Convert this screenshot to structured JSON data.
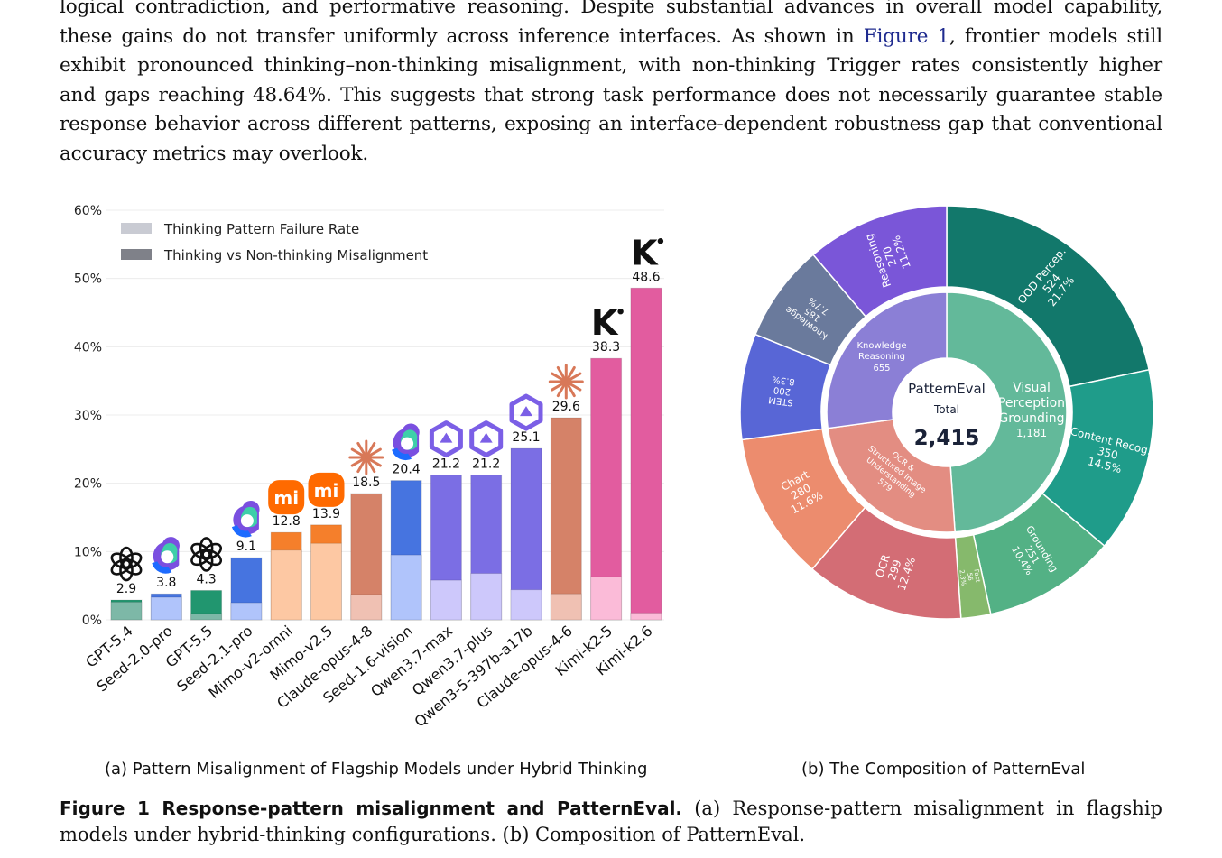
{
  "paragraph": {
    "line1": "logical contradiction, and performative reasoning. Despite substantial advances in overall model capability,",
    "line2_a": "these gains do not transfer uniformly across inference interfaces. As shown in ",
    "line2_link": "Figure 1",
    "line2_b": ", frontier models still",
    "line3": "exhibit pronounced thinking–non-thinking misalignment, with non-thinking Trigger rates consistently higher",
    "line4": "and gaps reaching 48.64%. This suggests that strong task performance does not necessarily guarantee stable",
    "line5": "response behavior across different patterns, exposing an interface-dependent robustness gap that conventional",
    "line6": "accuracy metrics may overlook."
  },
  "chart_data": [
    {
      "type": "bar",
      "title": "",
      "xlabel": "",
      "ylabel": "",
      "ylim": [
        0,
        60
      ],
      "yticks": [
        "0%",
        "10%",
        "20%",
        "30%",
        "40%",
        "50%",
        "60%"
      ],
      "grid": true,
      "legend_position": "top-left",
      "categories": [
        "GPT-5.4",
        "Seed-2.0-pro",
        "GPT-5.5",
        "Seed-2.1-pro",
        "Mimo-v2-omni",
        "Mimo-v2.5",
        "Claude-opus-4-8",
        "Seed-1.6-vision",
        "Qwen3.7-max",
        "Qwen3.7-plus",
        "Qwen3-5-397b-a17b",
        "Claude-opus-4-6",
        "Kimi-k2-5",
        "Kimi-k2.6"
      ],
      "series": [
        {
          "name": "Thinking Pattern Failure Rate",
          "values": [
            2.6,
            3.3,
            0.9,
            2.5,
            10.2,
            11.2,
            3.7,
            9.5,
            5.8,
            6.8,
            4.4,
            3.8,
            6.3,
            1.0
          ]
        },
        {
          "name": "Thinking vs Non-thinking Misalignment",
          "values": [
            2.9,
            3.8,
            4.3,
            9.1,
            12.8,
            13.9,
            18.5,
            20.4,
            21.2,
            21.2,
            25.1,
            29.6,
            38.3,
            48.6
          ]
        }
      ],
      "data_labels": [
        "2.9",
        "3.8",
        "4.3",
        "9.1",
        "12.8",
        "13.9",
        "18.5",
        "20.4",
        "21.2",
        "21.2",
        "25.1",
        "29.6",
        "38.3",
        "48.6"
      ],
      "vendor_icons": [
        "openai-icon",
        "seed-icon",
        "openai-icon",
        "seed-icon",
        "xiaomi-icon",
        "xiaomi-icon",
        "claude-icon",
        "seed-icon",
        "qwen-icon",
        "qwen-icon",
        "qwen-icon",
        "claude-icon",
        "kimi-icon",
        "kimi-icon"
      ],
      "colors": {
        "top": [
          "#21966f",
          "#4674e0",
          "#21966f",
          "#4674e0",
          "#f57f2b",
          "#f57f2b",
          "#d58268",
          "#4674e0",
          "#7b6ee4",
          "#7b6ee4",
          "#7b6ee4",
          "#d58268",
          "#e25c9f",
          "#e25c9f"
        ],
        "bottom": [
          "#7db8a7",
          "#b0c4fb",
          "#7db8a7",
          "#b0c4fb",
          "#fdc8a3",
          "#fdc8a3",
          "#f0c1b3",
          "#b0c4fb",
          "#cdc8fb",
          "#cdc8fb",
          "#cdc8fb",
          "#f0c1b3",
          "#fbbbd8",
          "#fbbbd8"
        ],
        "legend_light": "#c9cbd3",
        "legend_dark": "#7f8189"
      }
    },
    {
      "type": "sunburst",
      "center": {
        "name": "PatternEval",
        "label": "Total",
        "value": "2,415"
      },
      "inner": [
        {
          "name": "Visual Perception Grounding",
          "value": "1,181",
          "color": "#63b99a"
        },
        {
          "name": "OCR & Structured Image Understanding",
          "value": "579",
          "color": "#e38d82"
        },
        {
          "name": "Knowledge Reasoning",
          "value": "655",
          "color": "#8b7fd6"
        }
      ],
      "outer": [
        {
          "name": "OOD Percep.",
          "count": "524",
          "pct": "21.7%",
          "color": "#12786b"
        },
        {
          "name": "Content Recog.",
          "count": "350",
          "pct": "14.5%",
          "color": "#1f9c8a"
        },
        {
          "name": "Grounding",
          "count": "251",
          "pct": "10.4%",
          "color": "#53b185"
        },
        {
          "name": "Fact",
          "count": "56",
          "pct": "2.3%",
          "color": "#86b96c"
        },
        {
          "name": "OCR",
          "count": "299",
          "pct": "12.4%",
          "color": "#d36d75"
        },
        {
          "name": "Chart",
          "count": "280",
          "pct": "11.6%",
          "color": "#ec8c6e"
        },
        {
          "name": "STEM",
          "count": "200",
          "pct": "8.3%",
          "color": "#5866d6"
        },
        {
          "name": "Knowledge",
          "count": "185",
          "pct": "7.7%",
          "color": "#6a7a9c"
        },
        {
          "name": "Reasoning",
          "count": "270",
          "pct": "11.2%",
          "color": "#7a56d8"
        }
      ]
    }
  ],
  "subcaptions": {
    "a": "(a) Pattern Misalignment of Flagship Models under Hybrid Thinking",
    "b": "(b) The Composition of PatternEval"
  },
  "figure_caption": {
    "label": "Figure 1  Response-pattern misalignment and PatternEval.",
    "text": " (a) Response-pattern misalignment in flagship models under hybrid-thinking configurations. (b) Composition of PatternEval."
  }
}
